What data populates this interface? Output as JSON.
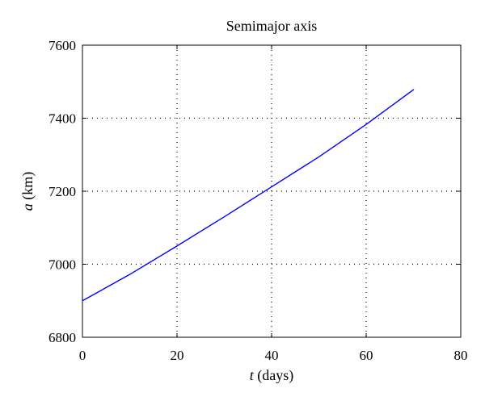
{
  "chart_data": {
    "type": "line",
    "title": "Semimajor axis",
    "xlabel": {
      "symbol": "t",
      "rest": " (days)"
    },
    "ylabel": {
      "symbol": "a",
      "rest": " (km)"
    },
    "xlim": [
      0,
      80
    ],
    "ylim": [
      6800,
      7600
    ],
    "xticks": [
      0,
      20,
      40,
      60,
      80
    ],
    "yticks": [
      6800,
      7000,
      7200,
      7400,
      7600
    ],
    "xtick_labels": [
      "0",
      "20",
      "40",
      "60",
      "80"
    ],
    "ytick_labels": [
      "6800",
      "7000",
      "7200",
      "7400",
      "7600"
    ],
    "grid": true,
    "series": [
      {
        "color": "#0000ff",
        "x": [
          0,
          10,
          20,
          30,
          40,
          50,
          60,
          70
        ],
        "y": [
          6900,
          6972,
          7050,
          7130,
          7212,
          7294,
          7383,
          7478
        ]
      }
    ]
  }
}
